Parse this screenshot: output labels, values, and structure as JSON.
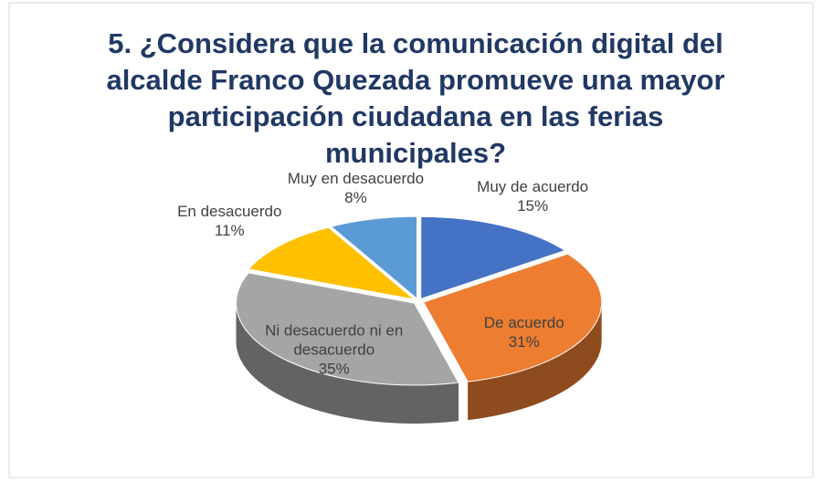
{
  "chart_data": {
    "type": "pie",
    "title": "5. ¿Considera que la comunicación digital del alcalde Franco Quezada promueve una mayor participación ciudadana en las ferias municipales?",
    "categories": [
      "Muy de acuerdo",
      "De acuerdo",
      "Ni desacuerdo ni en desacuerdo",
      "En desacuerdo",
      "Muy en desacuerdo"
    ],
    "values": [
      15,
      31,
      35,
      11,
      8
    ],
    "value_labels": [
      "15%",
      "31%",
      "35%",
      "11%",
      "8%"
    ],
    "colors": [
      "#4472c4",
      "#ed7d31",
      "#a5a5a5",
      "#ffc000",
      "#5b9bd5"
    ]
  }
}
